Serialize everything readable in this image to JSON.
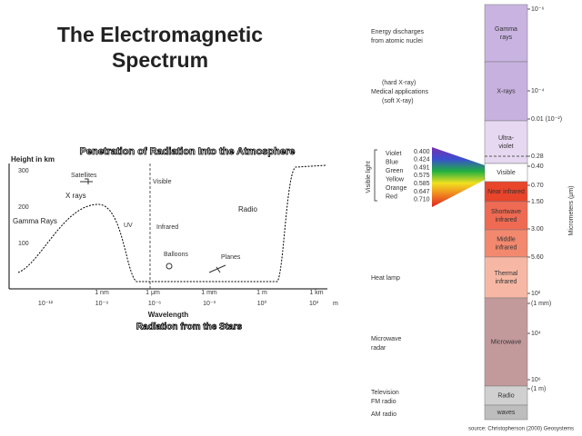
{
  "title": [
    "The Electromagnetic",
    "Spectrum"
  ],
  "atmosphere": {
    "title": "Penetration of Radiation Into the Atmosphere",
    "y_axis_label": "Height in km",
    "height_ticks": [
      "300",
      "200",
      "100"
    ],
    "labels": {
      "satellites": "Satellites",
      "x_rays": "X rays",
      "gamma_rays": "Gamma Rays",
      "uv": "UV",
      "infrared": "Infrared",
      "radio": "Radio",
      "visible": "Visible",
      "balloons": "Balloons",
      "planes": "Planes"
    },
    "wavelength_units": [
      "1 nm",
      "1 μm",
      "1 mm",
      "1 m",
      "1 km"
    ],
    "wavelength_powers": [
      "10⁻¹²",
      "10⁻⁹",
      "10⁻⁶",
      "10⁻³",
      "10⁰",
      "10³"
    ],
    "unit": "m",
    "x_axis_label": "Wavelength",
    "caption": "Radiation from the Stars"
  },
  "spectrum": {
    "bands": [
      [
        "Gamma",
        "rays"
      ],
      [
        "X-rays"
      ],
      [
        "Ultra-",
        "violet"
      ],
      [
        "Visible"
      ],
      [
        "Near infrared"
      ],
      [
        "Shortwave",
        "infrared"
      ],
      [
        "Middle",
        "infrared"
      ],
      [
        "Thermal",
        "infrared"
      ],
      [
        "Microwave"
      ],
      [
        "Radio"
      ],
      [
        "waves"
      ]
    ],
    "scale": [
      "10⁻⁶",
      "10⁻⁴",
      "0.01 (10⁻²)",
      "0.28",
      "0.40",
      "0.70",
      "1.50",
      "3.00",
      "5.60",
      "10²",
      "(1 mm)",
      "10⁴",
      "10⁶",
      "(1 m)"
    ],
    "scale_title": "Micrometers (μm)",
    "applications": [
      [
        "Energy discharges",
        "from atomic nuclei"
      ],
      [
        "(hard X-ray)",
        "Medical applications",
        "(soft X-ray)"
      ],
      [
        "Heat lamp"
      ],
      [
        "Microwave",
        "radar"
      ],
      [
        "Television",
        "FM radio"
      ],
      [
        "AM radio"
      ]
    ],
    "visible_light": {
      "label": "Visible light",
      "colors": [
        "Violet",
        "Blue",
        "Green",
        "Yellow",
        "Orange",
        "Red"
      ],
      "wavelengths": [
        "0.400",
        "0.424",
        "0.491",
        "0.575",
        "0.585",
        "0.647",
        "0.710"
      ]
    },
    "source": "source: Christopherson (2000) Geosystems"
  }
}
